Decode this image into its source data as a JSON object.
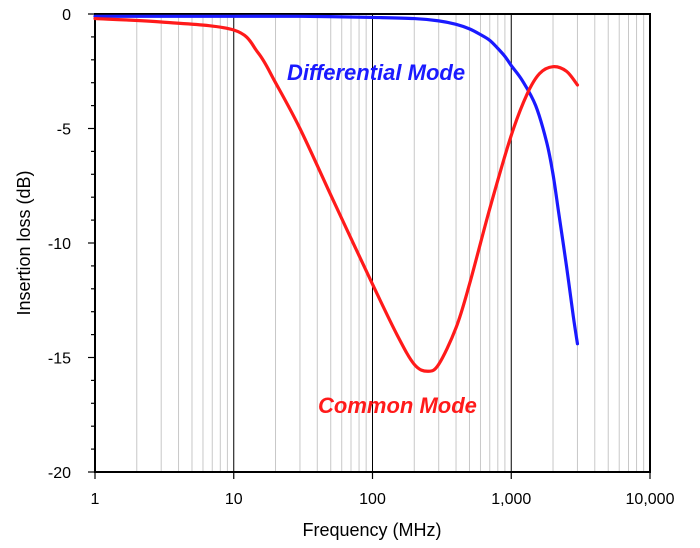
{
  "chart_data": {
    "type": "line",
    "xlabel": "Frequency (MHz)",
    "ylabel": "Insertion loss (dB)",
    "x_scale": "log",
    "xlim": [
      1,
      10000
    ],
    "ylim": [
      -20,
      0
    ],
    "grid": true,
    "x_ticks": [
      {
        "value": 1,
        "label": "1"
      },
      {
        "value": 10,
        "label": "10"
      },
      {
        "value": 100,
        "label": "100"
      },
      {
        "value": 1000,
        "label": "1,000"
      },
      {
        "value": 10000,
        "label": "10,000"
      }
    ],
    "y_ticks": [
      {
        "value": 0,
        "label": "0"
      },
      {
        "value": -5,
        "label": "-5"
      },
      {
        "value": -10,
        "label": "-10"
      },
      {
        "value": -15,
        "label": "-15"
      },
      {
        "value": -20,
        "label": "-20"
      }
    ],
    "series": [
      {
        "name": "Differential Mode",
        "color": "#1a1aff",
        "x": [
          1,
          3,
          10,
          30,
          100,
          200,
          300,
          400,
          500,
          600,
          700,
          800,
          900,
          1000,
          1200,
          1500,
          1800,
          2000,
          2200,
          2500,
          2800,
          3000
        ],
        "y": [
          -0.1,
          -0.1,
          -0.1,
          -0.1,
          -0.15,
          -0.2,
          -0.3,
          -0.45,
          -0.65,
          -0.9,
          -1.15,
          -1.5,
          -1.85,
          -2.25,
          -2.9,
          -4.0,
          -5.6,
          -7.0,
          -8.7,
          -11.0,
          -13.2,
          -14.4
        ]
      },
      {
        "name": "Common Mode",
        "color": "#ff1a1a",
        "x": [
          1,
          3,
          10,
          15,
          20,
          30,
          50,
          70,
          100,
          150,
          200,
          250,
          300,
          400,
          500,
          700,
          1000,
          1300,
          1600,
          2000,
          2500,
          3000
        ],
        "y": [
          -0.2,
          -0.35,
          -0.7,
          -1.7,
          -3.0,
          -5.0,
          -7.9,
          -9.8,
          -11.8,
          -14.0,
          -15.3,
          -15.6,
          -15.3,
          -13.7,
          -11.8,
          -8.5,
          -5.3,
          -3.5,
          -2.6,
          -2.3,
          -2.5,
          -3.1
        ]
      }
    ]
  }
}
